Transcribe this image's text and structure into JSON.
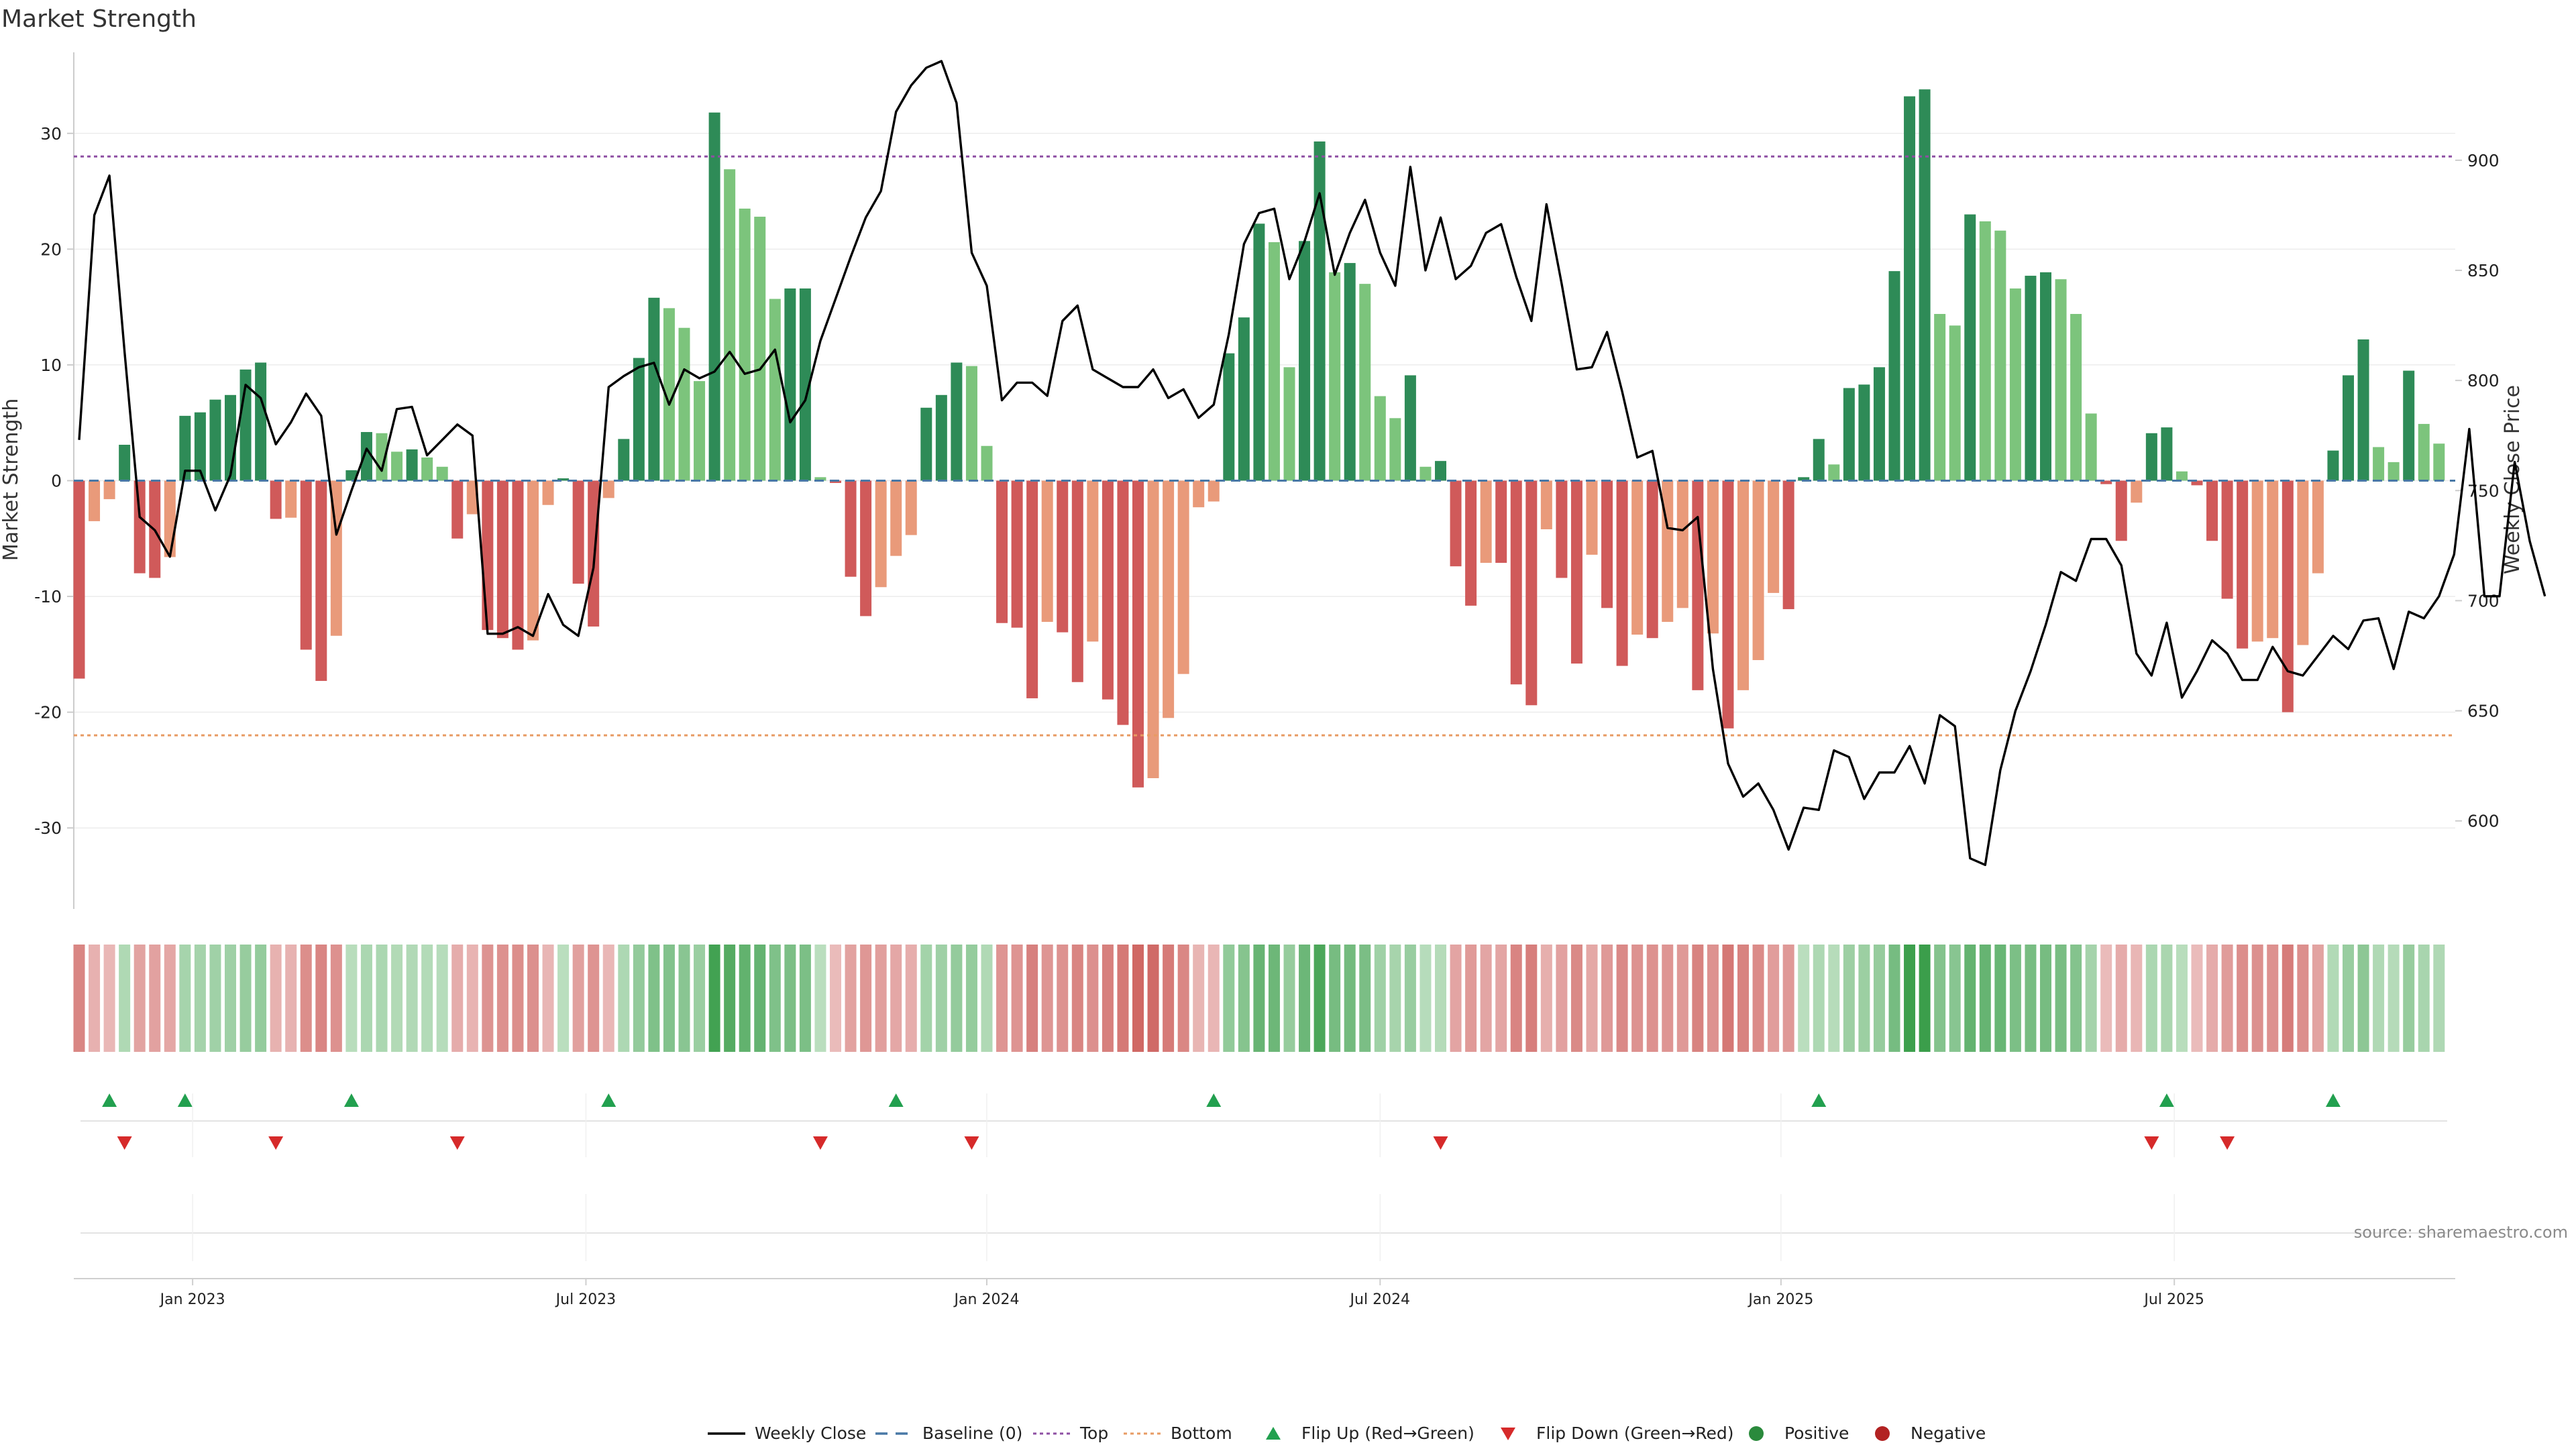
{
  "chart_data": {
    "type": "bar+line",
    "title": "Market Strength",
    "ylabel_left": "Market Strength",
    "ylabel_right": "Weekly Close Price",
    "ylim_left": [
      -37,
      37
    ],
    "ylim_right": [
      560,
      949
    ],
    "left_ticks": [
      30,
      20,
      10,
      0,
      -10,
      -20,
      -30
    ],
    "right_ticks": [
      900,
      850,
      800,
      750,
      700,
      650,
      600
    ],
    "top_threshold": 28,
    "bottom_threshold": -22,
    "x_labels": [
      "Jan 2023",
      "Jul 2023",
      "Jan 2024",
      "Jul 2024",
      "Jan 2025",
      "Jul 2025"
    ],
    "x_label_positions": [
      7.5,
      33.5,
      60.0,
      86.0,
      112.5,
      138.5
    ],
    "series": [
      {
        "name": "Market Strength",
        "values": [
          -17.1,
          -3.5,
          -1.6,
          3.1,
          -8.0,
          -8.4,
          -6.6,
          5.6,
          5.9,
          7.0,
          7.4,
          9.6,
          10.2,
          -3.3,
          -3.2,
          -14.6,
          -17.3,
          -13.4,
          0.9,
          4.2,
          4.1,
          2.5,
          2.7,
          2.0,
          1.2,
          -5.0,
          -2.9,
          -12.9,
          -13.6,
          -14.6,
          -13.8,
          -2.1,
          0.2,
          -8.9,
          -12.6,
          -1.5,
          3.6,
          10.6,
          15.8,
          14.9,
          13.2,
          8.6,
          31.8,
          26.9,
          23.5,
          22.8,
          15.7,
          16.6,
          16.6,
          0.3,
          -0.2,
          -8.3,
          -11.7,
          -9.2,
          -6.5,
          -4.7,
          6.3,
          7.4,
          10.2,
          9.9,
          3.0,
          -12.3,
          -12.7,
          -18.8,
          -12.2,
          -13.1,
          -17.4,
          -13.9,
          -18.9,
          -21.1,
          -26.5,
          -25.7,
          -20.5,
          -16.7,
          -2.3,
          -1.8,
          11.0,
          14.1,
          22.2,
          20.6,
          9.8,
          20.7,
          29.3,
          18.0,
          18.8,
          17.0,
          7.3,
          5.4,
          9.1,
          1.2,
          1.7,
          -7.4,
          -10.8,
          -7.1,
          -7.1,
          -17.6,
          -19.4,
          -4.2,
          -8.4,
          -15.8,
          -6.4,
          -11.0,
          -16.0,
          -13.3,
          -13.6,
          -12.2,
          -11.0,
          -18.1,
          -13.2,
          -21.4,
          -18.1,
          -15.5,
          -9.7,
          -11.1,
          0.3,
          3.6,
          1.4,
          8.0,
          8.3,
          9.8,
          18.1,
          33.2,
          33.8,
          14.4,
          13.4,
          23.0,
          22.4,
          21.6,
          16.6,
          17.7,
          18.0,
          17.4,
          14.4,
          5.8,
          -0.3,
          -5.2,
          -1.9,
          4.1,
          4.6,
          0.8,
          -0.4,
          -5.2,
          -10.2,
          -14.5,
          -13.9,
          -13.6,
          -20.0,
          -14.2,
          -8.0,
          2.6,
          9.1,
          12.2,
          2.9,
          1.6,
          9.5,
          4.9,
          3.2
        ]
      },
      {
        "name": "Weekly Close",
        "values": [
          773,
          875,
          893,
          813,
          738,
          732,
          720,
          759,
          759,
          741,
          757,
          798,
          792,
          771,
          781,
          794,
          784,
          730,
          750,
          769,
          759,
          787,
          788,
          766,
          773,
          780,
          775,
          685,
          685,
          688,
          684,
          703,
          689,
          684,
          715,
          797,
          802,
          806,
          808,
          789,
          805,
          801,
          804,
          813,
          803,
          805,
          814,
          781,
          791,
          818,
          837,
          856,
          874,
          886,
          922,
          934,
          942,
          945,
          926,
          858,
          843,
          791,
          799,
          799,
          793,
          827,
          834,
          805,
          801,
          797,
          797,
          805,
          792,
          796,
          783,
          789,
          821,
          862,
          876,
          878,
          846,
          863,
          885,
          848,
          867,
          882,
          858,
          843,
          897,
          850,
          874,
          846,
          852,
          867,
          871,
          847,
          827,
          880,
          844,
          805,
          806,
          822,
          795,
          765,
          768,
          733,
          732,
          738,
          669,
          626,
          611,
          617,
          605,
          587,
          606,
          605,
          632,
          629,
          610,
          622,
          622,
          634,
          617,
          648,
          643,
          583,
          580,
          623,
          650,
          668,
          689,
          713,
          709,
          728,
          728,
          716,
          676,
          666,
          690,
          656,
          668,
          682,
          676,
          664,
          664,
          679,
          668,
          666,
          675,
          684,
          678,
          691,
          692,
          669,
          695,
          692,
          702,
          721,
          778,
          702,
          702,
          763,
          727,
          702
        ]
      }
    ],
    "flip_up_indices": [
      2,
      7,
      18,
      35,
      54,
      75,
      115,
      138,
      149
    ],
    "flip_down_indices": [
      3,
      13,
      25,
      49,
      59,
      90,
      137,
      142
    ],
    "source": "source: sharemaestro.com",
    "legend": [
      {
        "label": "Weekly Close",
        "kind": "line",
        "color": "#000000"
      },
      {
        "label": "Baseline (0)",
        "kind": "dashed",
        "color": "#4878a6"
      },
      {
        "label": "Top",
        "kind": "dotted",
        "color": "#8e4fa3"
      },
      {
        "label": "Bottom",
        "kind": "dotted",
        "color": "#e89b63"
      },
      {
        "label": "Flip Up (Red→Green)",
        "kind": "tri-up",
        "color": "#22a04f"
      },
      {
        "label": "Flip Down (Green→Red)",
        "kind": "tri-down",
        "color": "#d62a2a"
      },
      {
        "label": "Positive",
        "kind": "dot",
        "color": "#2a8a3c"
      },
      {
        "label": "Negative",
        "kind": "dot",
        "color": "#b22222"
      }
    ],
    "colors": {
      "pos_dark": "#2e8b57",
      "pos_light": "#7cc47c",
      "neg_dark": "#d05a5a",
      "neg_light": "#e99a7a",
      "top_line": "#8e4fa3",
      "bottom_line": "#e89b63",
      "baseline": "#4878a6",
      "price_line": "#000000",
      "flip_up": "#22a04f",
      "flip_down": "#d62a2a"
    }
  }
}
